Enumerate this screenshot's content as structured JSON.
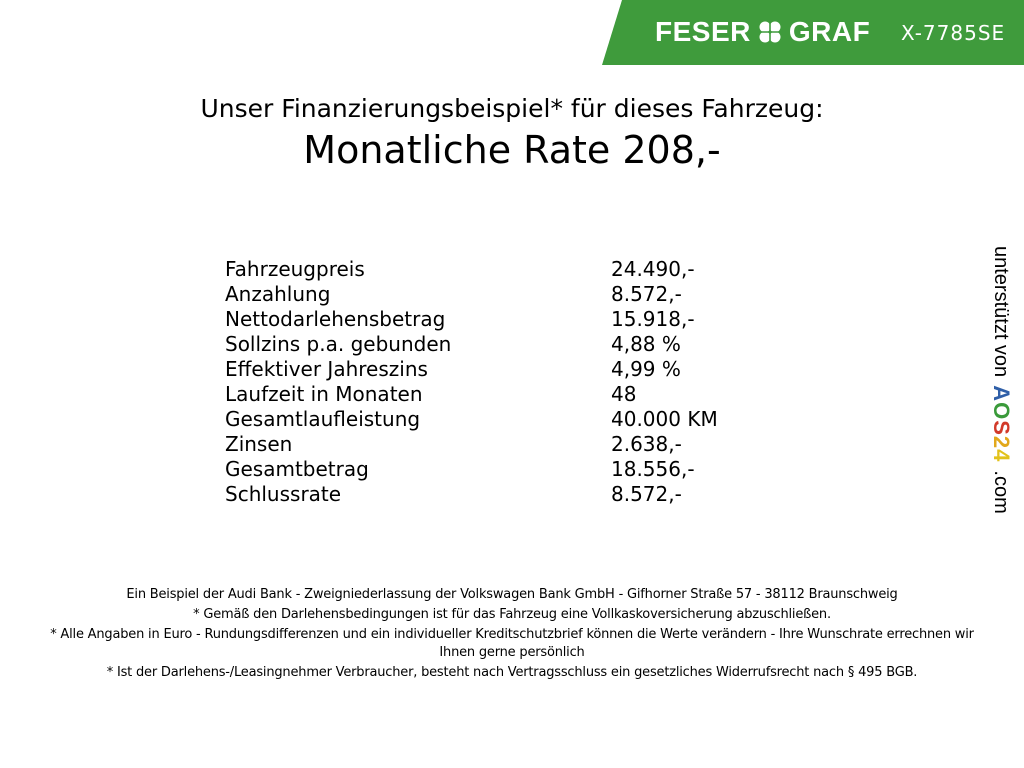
{
  "header": {
    "brand": "FESER GRAF",
    "brand_left": "FESER",
    "brand_right": "GRAF",
    "plate": "X-7785SE",
    "brand_color": "#3f9b3c"
  },
  "title": {
    "line1": "Unser Finanzierungsbeispiel* für dieses Fahrzeug:",
    "line2": "Monatliche Rate 208,-"
  },
  "finance_table": [
    {
      "label": "Fahrzeugpreis",
      "value": "24.490,-"
    },
    {
      "label": "Anzahlung",
      "value": "8.572,-"
    },
    {
      "label": "Nettodarlehensbetrag",
      "value": "15.918,-"
    },
    {
      "label": "Sollzins p.a. gebunden",
      "value": "4,88 %"
    },
    {
      "label": "Effektiver Jahreszins",
      "value": "4,99 %"
    },
    {
      "label": "Laufzeit in Monaten",
      "value": "48"
    },
    {
      "label": "Gesamtlaufleistung",
      "value": "40.000 KM"
    },
    {
      "label": "Zinsen",
      "value": "2.638,-"
    },
    {
      "label": "Gesamtbetrag",
      "value": "18.556,-"
    },
    {
      "label": "Schlussrate",
      "value": "8.572,-"
    }
  ],
  "side_note": {
    "text": "unterstützt von",
    "logo": "AOS24",
    "logo_letters": [
      "A",
      "O",
      "S",
      "2",
      "4"
    ],
    "logo_colors": [
      "#2f5fa8",
      "#3a9a3a",
      "#d23a2a",
      "#e2a81b",
      "#e2c21b"
    ],
    "suffix": ".com"
  },
  "footer": [
    "Ein Beispiel der Audi Bank - Zweigniederlassung der Volkswagen Bank GmbH - Gifhorner Straße 57 - 38112 Braunschweig",
    "* Gemäß den Darlehensbedingungen ist für das Fahrzeug eine Vollkaskoversicherung abzuschließen.",
    "* Alle Angaben in Euro - Rundungsdifferenzen und ein individueller Kreditschutzbrief können die Werte verändern - Ihre Wunschrate errechnen wir Ihnen gerne persönlich",
    "* Ist der Darlehens-/Leasingnehmer Verbraucher, besteht nach Vertragsschluss ein gesetzliches Widerrufsrecht nach § 495 BGB."
  ]
}
